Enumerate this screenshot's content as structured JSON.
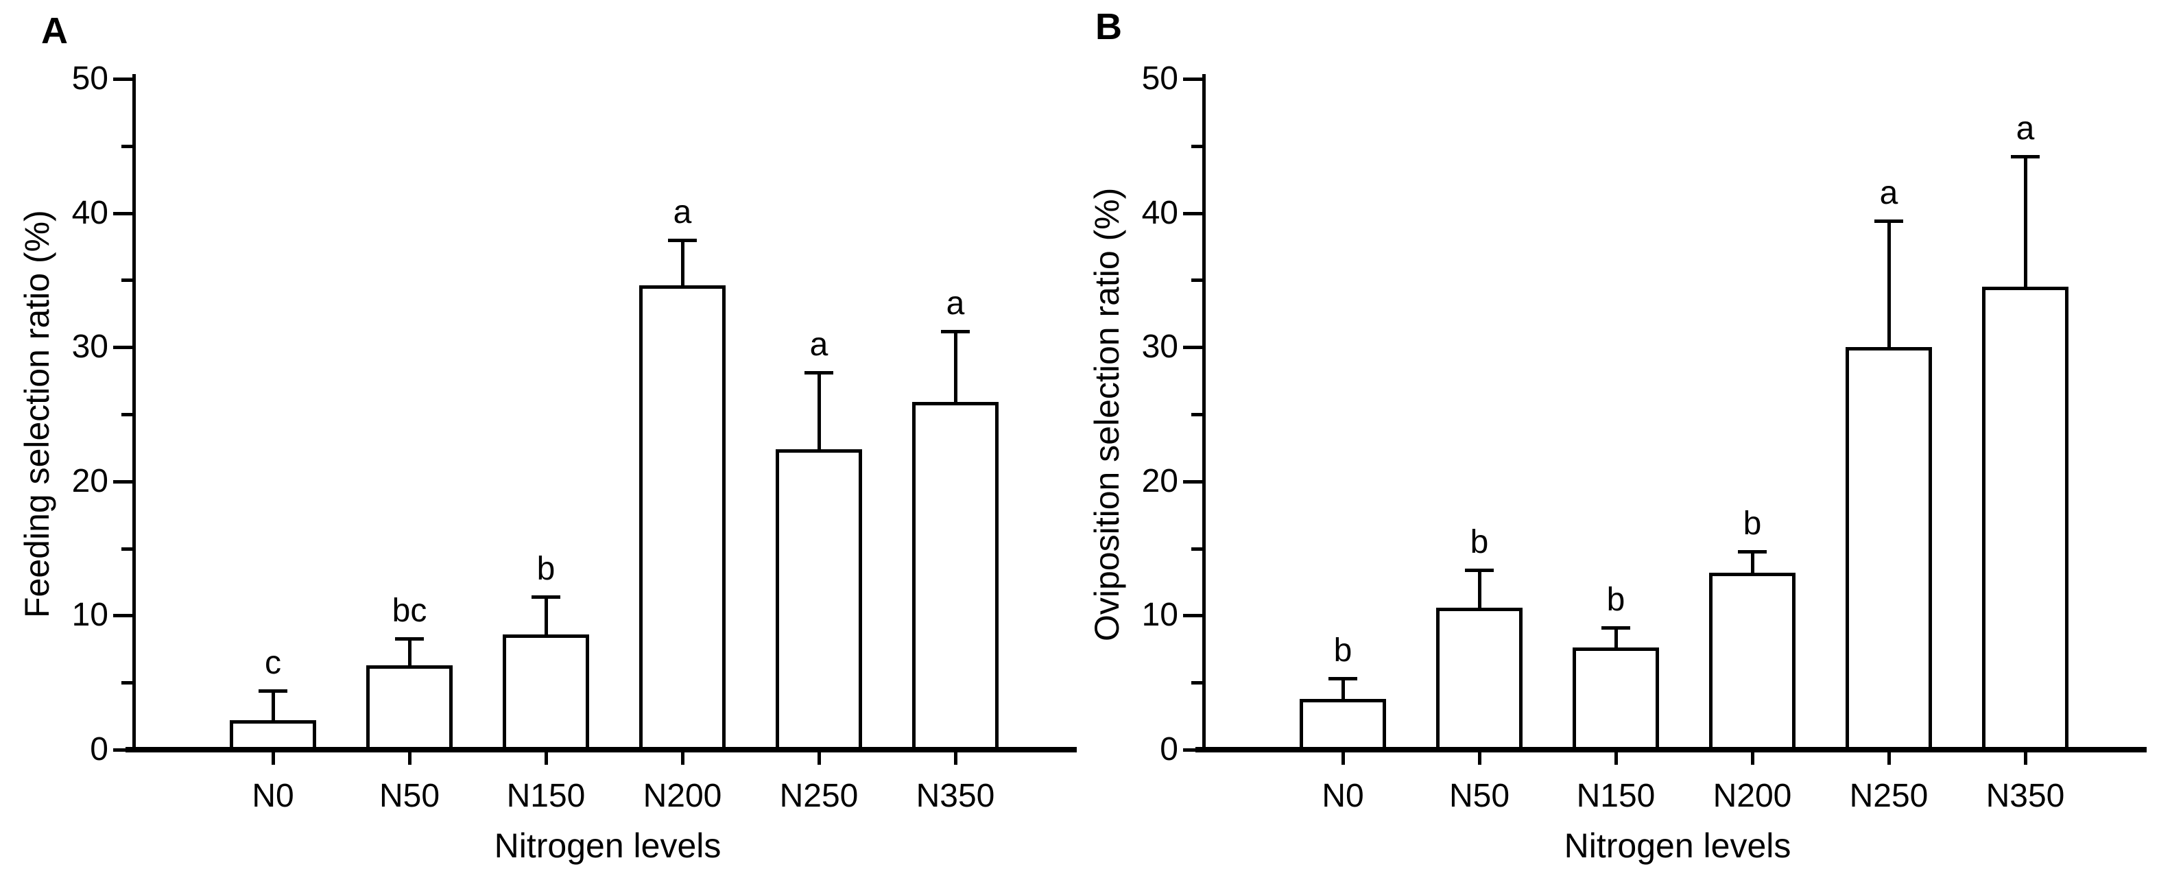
{
  "figure_background": "#ffffff",
  "ink_color": "#000000",
  "chart_data": [
    {
      "type": "bar",
      "panel_label": "A",
      "title": "",
      "ylabel": "Feeding selection ratio (%)",
      "xlabel": "Nitrogen levels",
      "categories": [
        "N0",
        "N50",
        "N150",
        "N200",
        "N250",
        "N350"
      ],
      "values": [
        2.2,
        6.3,
        8.6,
        34.6,
        22.4,
        25.9
      ],
      "errors_upper": [
        2.2,
        2.0,
        2.8,
        3.4,
        5.7,
        5.3
      ],
      "sig_letters": [
        "c",
        "bc",
        "b",
        "a",
        "a",
        "a"
      ],
      "ylim": [
        0,
        50
      ],
      "yticks": [
        0,
        10,
        20,
        30,
        40,
        50
      ],
      "minor_ticks": [
        5,
        15,
        25,
        35,
        45
      ],
      "grid": false,
      "legend": "none",
      "bar_fill": "#ffffff",
      "bar_edge": "#000000"
    },
    {
      "type": "bar",
      "panel_label": "B",
      "title": "",
      "ylabel": "Oviposition selection ratio (%)",
      "xlabel": "Nitrogen levels",
      "categories": [
        "N0",
        "N50",
        "N150",
        "N200",
        "N250",
        "N350"
      ],
      "values": [
        3.8,
        10.6,
        7.6,
        13.2,
        30.0,
        34.5
      ],
      "errors_upper": [
        1.5,
        2.8,
        1.5,
        1.6,
        9.4,
        9.7
      ],
      "sig_letters": [
        "b",
        "b",
        "b",
        "b",
        "a",
        "a"
      ],
      "ylim": [
        0,
        50
      ],
      "yticks": [
        0,
        10,
        20,
        30,
        40,
        50
      ],
      "minor_ticks": [
        5,
        15,
        25,
        35,
        45
      ],
      "grid": false,
      "legend": "none",
      "bar_fill": "#ffffff",
      "bar_edge": "#000000"
    }
  ]
}
